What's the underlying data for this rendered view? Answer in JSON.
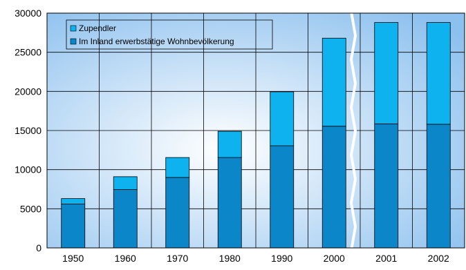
{
  "chart_data": {
    "type": "bar",
    "stacked": true,
    "categories": [
      "1950",
      "1960",
      "1970",
      "1980",
      "1990",
      "2000",
      "2001",
      "2002"
    ],
    "series": [
      {
        "name": "Im Inland erwerbstätige Wohnbevölkerung",
        "values": [
          5600,
          7450,
          9000,
          11550,
          13050,
          15550,
          15850,
          15800
        ],
        "color": "#0b86c8"
      },
      {
        "name": "Zupendler",
        "values": [
          700,
          1650,
          2550,
          3350,
          6900,
          11250,
          12950,
          13000
        ],
        "color": "#0db2ee"
      }
    ],
    "ylim": [
      0,
      30000
    ],
    "yticks": [
      0,
      5000,
      10000,
      15000,
      20000,
      25000,
      30000
    ],
    "grid": true,
    "axis_break_after_category": "2000",
    "legend_position": "top-left",
    "colors": {
      "plot_edge": "#8cc0ee",
      "plot_center": "#ffffff",
      "grid": "#000000",
      "break": "#ffffff"
    }
  }
}
